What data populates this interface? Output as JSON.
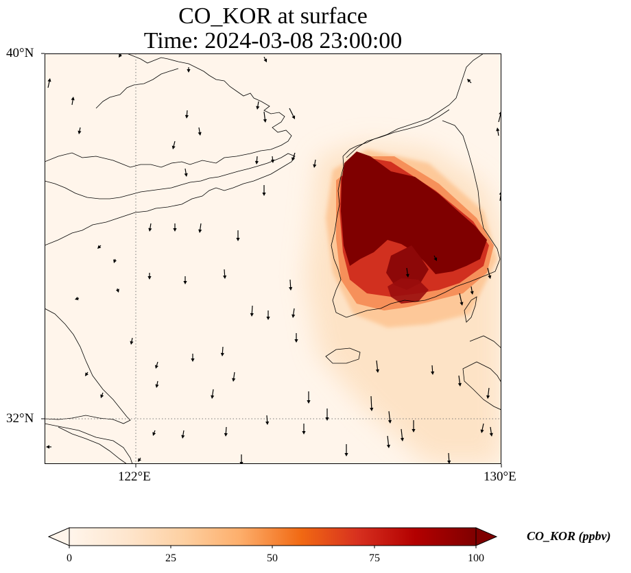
{
  "title_line1": "CO_KOR at surface",
  "title_line2": "Time: 2024-03-08 23:00:00",
  "map": {
    "variable": "CO_KOR",
    "level": "surface",
    "lon_range": [
      120,
      130
    ],
    "lat_range": [
      31,
      40
    ],
    "lat_ticks": [
      {
        "value": 40,
        "label": "40°N"
      },
      {
        "value": 32,
        "label": "32°N"
      }
    ],
    "lon_ticks": [
      {
        "value": 122,
        "label": "122°E"
      },
      {
        "value": 130,
        "label": "130°E"
      }
    ],
    "gridlines": {
      "lon": [
        122
      ],
      "lat": [
        32
      ],
      "style": "dotted"
    },
    "background_color": "#fff5eb",
    "coastline_color": "#000000"
  },
  "colorbar": {
    "title": "CO_KOR (ppbv)",
    "min": 0,
    "max": 100,
    "ticks": [
      {
        "value": 0,
        "label": "0"
      },
      {
        "value": 25,
        "label": "25"
      },
      {
        "value": 50,
        "label": "50"
      },
      {
        "value": 75,
        "label": "75"
      },
      {
        "value": 100,
        "label": "100"
      }
    ],
    "extend": "both",
    "colormap": "OrRd",
    "colors": [
      "#fff5eb",
      "#fee6ce",
      "#fdd0a2",
      "#fdae6b",
      "#f16913",
      "#d7301f",
      "#b30000",
      "#7f0000"
    ]
  }
}
